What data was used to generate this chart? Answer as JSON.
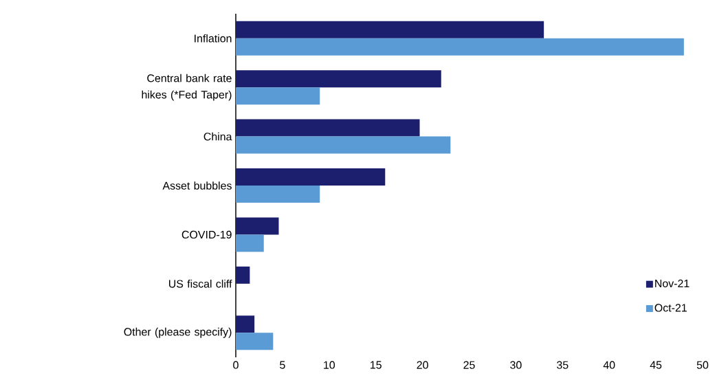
{
  "chart_data": {
    "type": "bar",
    "orientation": "horizontal",
    "categories": [
      "Inflation",
      "Central bank rate hikes (*Fed Taper)",
      "China",
      "Asset bubbles",
      "COVID-19",
      "US fiscal cliff",
      "Other (please specify)"
    ],
    "series": [
      {
        "name": "Nov-21",
        "color": "#1c1f6e",
        "values": [
          33,
          22,
          19.7,
          16,
          4.6,
          1.5,
          2
        ]
      },
      {
        "name": "Oct-21",
        "color": "#5b9bd5",
        "values": [
          48,
          9,
          23,
          9,
          3,
          0,
          4
        ]
      }
    ],
    "xlim": [
      0,
      50
    ],
    "xticks": [
      0,
      5,
      10,
      15,
      20,
      25,
      30,
      35,
      40,
      45,
      50
    ],
    "grid": false,
    "legend": "bottom right"
  }
}
